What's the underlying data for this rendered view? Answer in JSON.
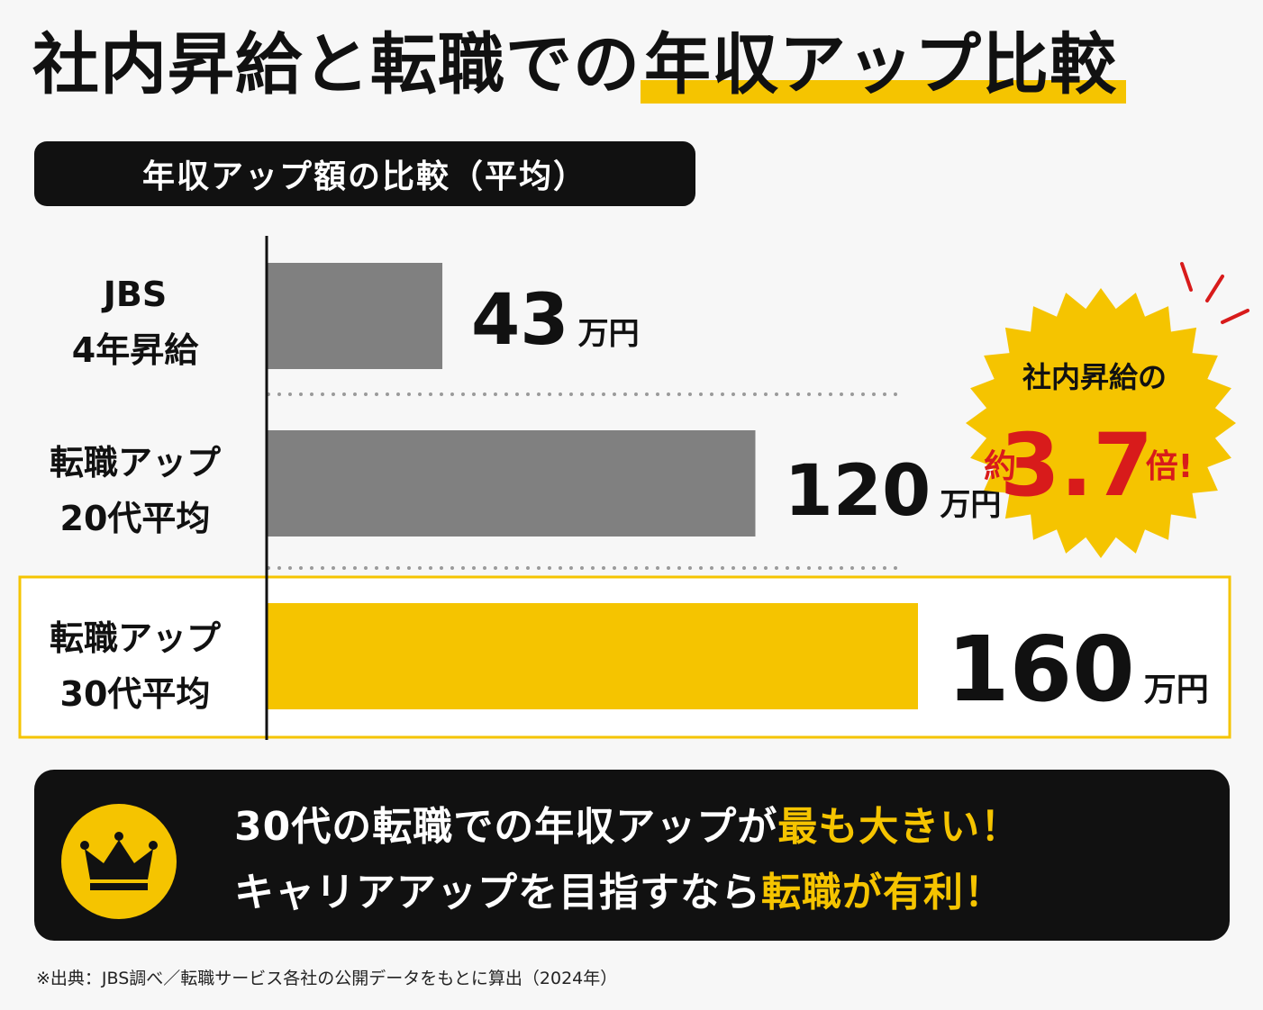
{
  "title": {
    "main": "社内昇給と転職での",
    "highlight": "年収アップ比較"
  },
  "subtitle": "年収アップ額の比較（平均）",
  "chart_data": {
    "type": "bar",
    "orientation": "horizontal",
    "categories": [
      [
        "JBS",
        "4年昇給"
      ],
      [
        "転職アップ",
        "20代平均"
      ],
      [
        "転職アップ",
        "30代平均"
      ]
    ],
    "values": [
      43,
      120,
      160
    ],
    "value_labels": [
      "43",
      "120",
      "160"
    ],
    "unit": "万円",
    "colors": [
      "#808080",
      "#808080",
      "#f5c400"
    ],
    "highlighted_index": 2,
    "xlim": [
      0,
      160
    ]
  },
  "badge": {
    "line1": "社内昇給の",
    "prefix": "約",
    "number": "3.7",
    "suffix": "倍!"
  },
  "banner": {
    "line1_a": "30代の転職での年収アップが",
    "line1_b": "最も大きい！",
    "line2_a": "キャリアアップを目指すなら",
    "line2_b": "転職が有利！",
    "icon": "crown-icon"
  },
  "footnote": "※出典：JBS調べ／転職サービス各社の公開データをもとに算出（2024年）",
  "colors": {
    "accent": "#f5c400",
    "gray_bar": "#808080",
    "dark": "#111111",
    "badge_text": "#d81b1b"
  }
}
